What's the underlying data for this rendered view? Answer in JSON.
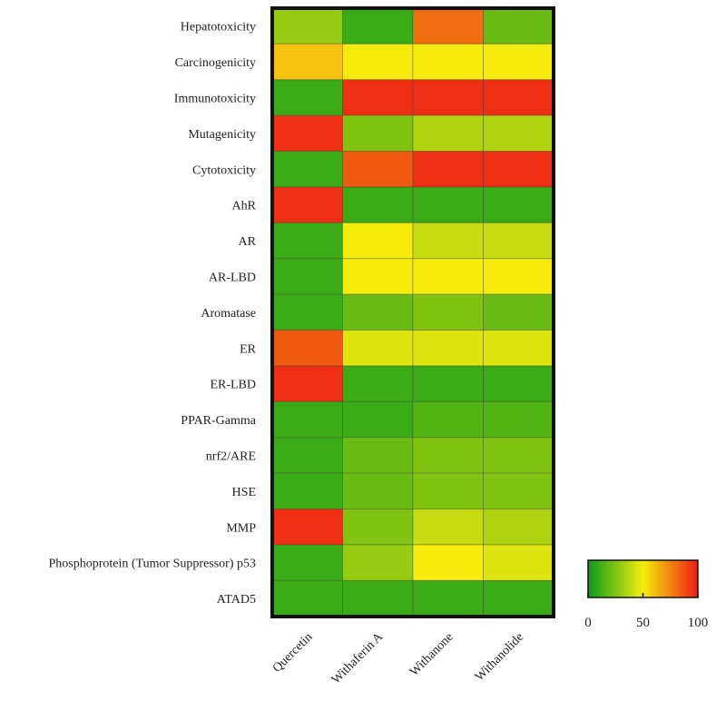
{
  "chart_data": {
    "type": "heatmap",
    "title": "",
    "xlabel": "",
    "ylabel": "",
    "columns": [
      "Quercetin",
      "Withaferin A",
      "Withanone",
      "Withanolide"
    ],
    "rows": [
      "Hepatotoxicity",
      "Carcinogenicity",
      "Immunotoxicity",
      "Mutagenicity",
      "Cytotoxicity",
      "AhR",
      "AR",
      "AR-LBD",
      "Aromatase",
      "ER",
      "ER-LBD",
      "PPAR-Gamma",
      "nrf2/ARE",
      "HSE",
      "MMP",
      "Phosphoprotein (Tumor Suppressor) p53",
      "ATAD5"
    ],
    "values": [
      [
        30,
        10,
        80,
        20
      ],
      [
        60,
        50,
        50,
        50
      ],
      [
        10,
        95,
        95,
        95
      ],
      [
        95,
        25,
        35,
        35
      ],
      [
        10,
        85,
        95,
        95
      ],
      [
        95,
        10,
        10,
        10
      ],
      [
        10,
        50,
        40,
        40
      ],
      [
        10,
        50,
        50,
        50
      ],
      [
        10,
        20,
        25,
        20
      ],
      [
        85,
        45,
        45,
        45
      ],
      [
        95,
        10,
        10,
        10
      ],
      [
        10,
        10,
        15,
        15
      ],
      [
        10,
        20,
        25,
        25
      ],
      [
        10,
        20,
        25,
        25
      ],
      [
        95,
        25,
        40,
        35
      ],
      [
        10,
        30,
        50,
        45
      ],
      [
        10,
        10,
        10,
        10
      ]
    ],
    "colorbar": {
      "min": 0,
      "max": 100,
      "ticks": [
        "0",
        "50",
        "100"
      ],
      "tick_values": [
        0,
        50,
        100
      ],
      "colors": [
        "#0b9a17",
        "#f5ec0e",
        "#ee1a14"
      ]
    },
    "legend_position": "bottom-right"
  }
}
